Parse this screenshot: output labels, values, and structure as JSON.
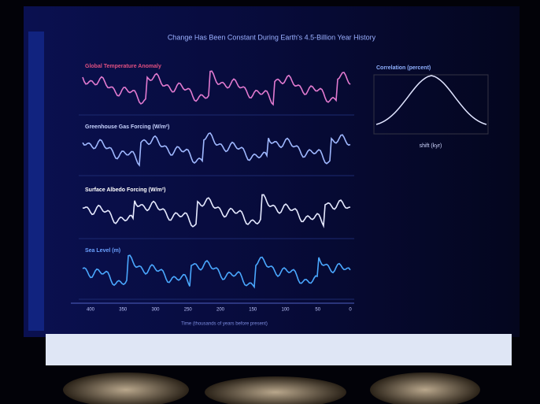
{
  "slide": {
    "title": "Change Has Been Constant During Earth's 4.5-Billion Year History",
    "panels": [
      {
        "label": "Global Temperature Anomaly"
      },
      {
        "label": "Greenhouse Gas Forcing (W/m²)"
      },
      {
        "label": "Surface Albedo Forcing (W/m²)"
      },
      {
        "label": "Sea Level (m)"
      }
    ],
    "x_ticks": [
      "400",
      "350",
      "300",
      "250",
      "200",
      "150",
      "100",
      "50",
      "0"
    ],
    "x_label": "Time (thousands of years before present)",
    "correlation": {
      "title": "Correlation (percent)",
      "x_label": "shift (kyr)"
    }
  }
}
